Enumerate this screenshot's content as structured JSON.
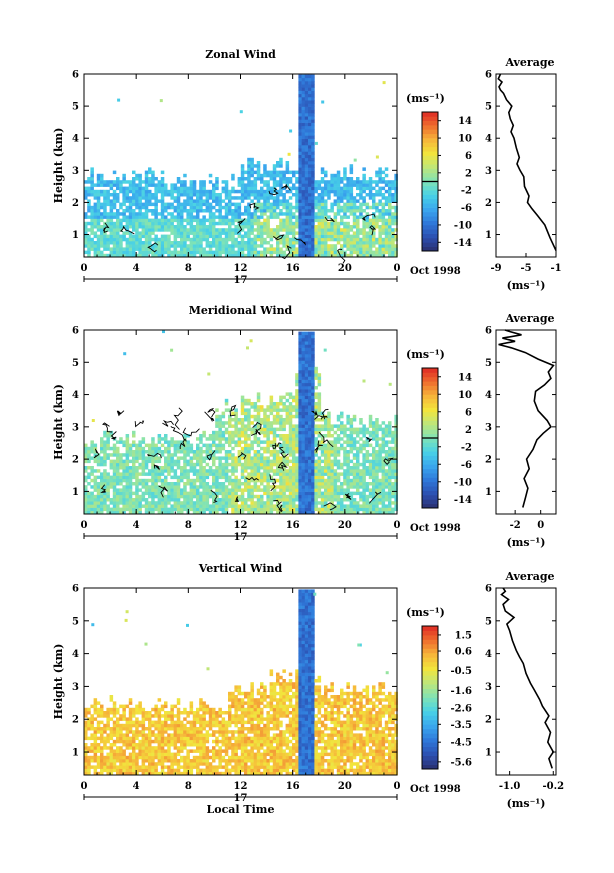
{
  "colors": {
    "colorbar_stops": [
      "#2a2f6e",
      "#2c4fb0",
      "#2f78d9",
      "#3aa6ee",
      "#48d1e6",
      "#7fe3b6",
      "#bde67c",
      "#f2e53c",
      "#f6b63a",
      "#ee6e2e",
      "#de2b25"
    ],
    "no_data": "#ffffff",
    "contour": "#000000",
    "spike": "#2f4fc4"
  },
  "date_label": "Oct 1998",
  "day_label": "17",
  "xlabel": "Local Time",
  "colorbar_unit": "(ms⁻¹)",
  "avg_unit": "(ms⁻¹)",
  "chart_data": [
    {
      "type": "heatmap",
      "title": "Zonal Wind",
      "ylabel": "Height (km)",
      "x_ticks": [
        "0",
        "4",
        "8",
        "12",
        "16",
        "20",
        "0"
      ],
      "y_ticks": [
        "1",
        "2",
        "3",
        "4",
        "5",
        "6"
      ],
      "xlim": [
        0,
        24
      ],
      "ylim": [
        0.3,
        6.0
      ],
      "colorbar": {
        "ticks": [
          "14",
          "10",
          "6",
          "2",
          "-2",
          "-6",
          "-10",
          "-14"
        ],
        "range": [
          -16,
          16
        ],
        "zero_line": 0
      },
      "average_profile": {
        "title": "Average",
        "x_ticks": [
          "-9",
          "-5",
          "-1"
        ],
        "xlim": [
          -9,
          -1
        ],
        "y_ticks": [
          "1",
          "2",
          "3",
          "4",
          "5",
          "6"
        ],
        "ylim": [
          0.3,
          6.0
        ],
        "x": [
          -1,
          -1.8,
          -2.5,
          -3.5,
          -4.2,
          -4.8,
          -4.6,
          -5.2,
          -5.3,
          -5.8,
          -6.2,
          -5.9,
          -6.3,
          -6.6,
          -7.0,
          -6.7,
          -7.1,
          -7.3,
          -6.9,
          -7.6,
          -8.0,
          -8.4,
          -8.6,
          -8.2,
          -8.7,
          -8.4
        ],
        "y": [
          0.5,
          0.9,
          1.3,
          1.6,
          1.8,
          2.0,
          2.2,
          2.5,
          2.8,
          3.0,
          3.2,
          3.4,
          3.7,
          4.0,
          4.2,
          4.4,
          4.6,
          4.8,
          5.0,
          5.2,
          5.4,
          5.5,
          5.6,
          5.75,
          5.85,
          6.0
        ]
      }
    },
    {
      "type": "heatmap",
      "title": "Meridional Wind",
      "ylabel": "Height (km)",
      "x_ticks": [
        "0",
        "4",
        "8",
        "12",
        "16",
        "20",
        "0"
      ],
      "y_ticks": [
        "1",
        "2",
        "3",
        "4",
        "5",
        "6"
      ],
      "xlim": [
        0,
        24
      ],
      "ylim": [
        0.3,
        6.0
      ],
      "colorbar": {
        "ticks": [
          "14",
          "10",
          "6",
          "2",
          "-2",
          "-6",
          "-10",
          "-14"
        ],
        "range": [
          -16,
          16
        ],
        "zero_line": 0
      },
      "average_profile": {
        "title": "Average",
        "x_ticks": [
          "-2",
          "0"
        ],
        "xlim": [
          -3.5,
          1.2
        ],
        "y_ticks": [
          "1",
          "2",
          "3",
          "4",
          "5",
          "6"
        ],
        "ylim": [
          0.3,
          6.0
        ],
        "x": [
          -1.4,
          -1.2,
          -1.0,
          -1.3,
          -0.9,
          -1.1,
          -0.6,
          -0.3,
          0.2,
          0.8,
          0.5,
          -0.2,
          -0.5,
          -0.4,
          0.3,
          0.8,
          0.6,
          1.0,
          -0.2,
          -1.2,
          -2.3,
          -3.3,
          -2.0,
          -3.0,
          -1.5,
          -2.4,
          -2.8
        ],
        "y": [
          0.5,
          0.8,
          1.1,
          1.4,
          1.7,
          2.0,
          2.3,
          2.6,
          2.8,
          3.0,
          3.2,
          3.5,
          3.8,
          4.1,
          4.3,
          4.5,
          4.7,
          4.9,
          5.1,
          5.3,
          5.45,
          5.55,
          5.65,
          5.75,
          5.85,
          5.95,
          6.0
        ]
      }
    },
    {
      "type": "heatmap",
      "title": "Vertical Wind",
      "ylabel": "Height (km)",
      "x_ticks": [
        "0",
        "4",
        "8",
        "12",
        "16",
        "20",
        "0"
      ],
      "y_ticks": [
        "1",
        "2",
        "3",
        "4",
        "5",
        "6"
      ],
      "xlim": [
        0,
        24
      ],
      "ylim": [
        0.3,
        6.0
      ],
      "colorbar": {
        "ticks": [
          "1.5",
          "0.6",
          "-0.5",
          "-1.6",
          "-2.6",
          "-3.5",
          "-4.5",
          "-5.6"
        ],
        "range": [
          -6.0,
          2.0
        ]
      },
      "average_profile": {
        "title": "Average",
        "x_ticks": [
          "-1.0",
          "-0.2"
        ],
        "xlim": [
          -1.25,
          -0.15
        ],
        "y_ticks": [
          "1",
          "2",
          "3",
          "4",
          "5",
          "6"
        ],
        "ylim": [
          0.3,
          6.0
        ],
        "x": [
          -0.22,
          -0.28,
          -0.2,
          -0.3,
          -0.25,
          -0.35,
          -0.28,
          -0.4,
          -0.45,
          -0.55,
          -0.62,
          -0.7,
          -0.75,
          -0.82,
          -0.88,
          -0.95,
          -1.0,
          -1.05,
          -0.92,
          -1.08,
          -1.12,
          -1.02,
          -1.15,
          -1.08,
          -1.12
        ],
        "y": [
          0.5,
          0.8,
          1.0,
          1.3,
          1.6,
          1.9,
          2.1,
          2.4,
          2.6,
          2.9,
          3.1,
          3.4,
          3.7,
          3.9,
          4.1,
          4.4,
          4.7,
          4.9,
          5.1,
          5.3,
          5.5,
          5.65,
          5.8,
          5.9,
          6.0
        ]
      }
    }
  ]
}
